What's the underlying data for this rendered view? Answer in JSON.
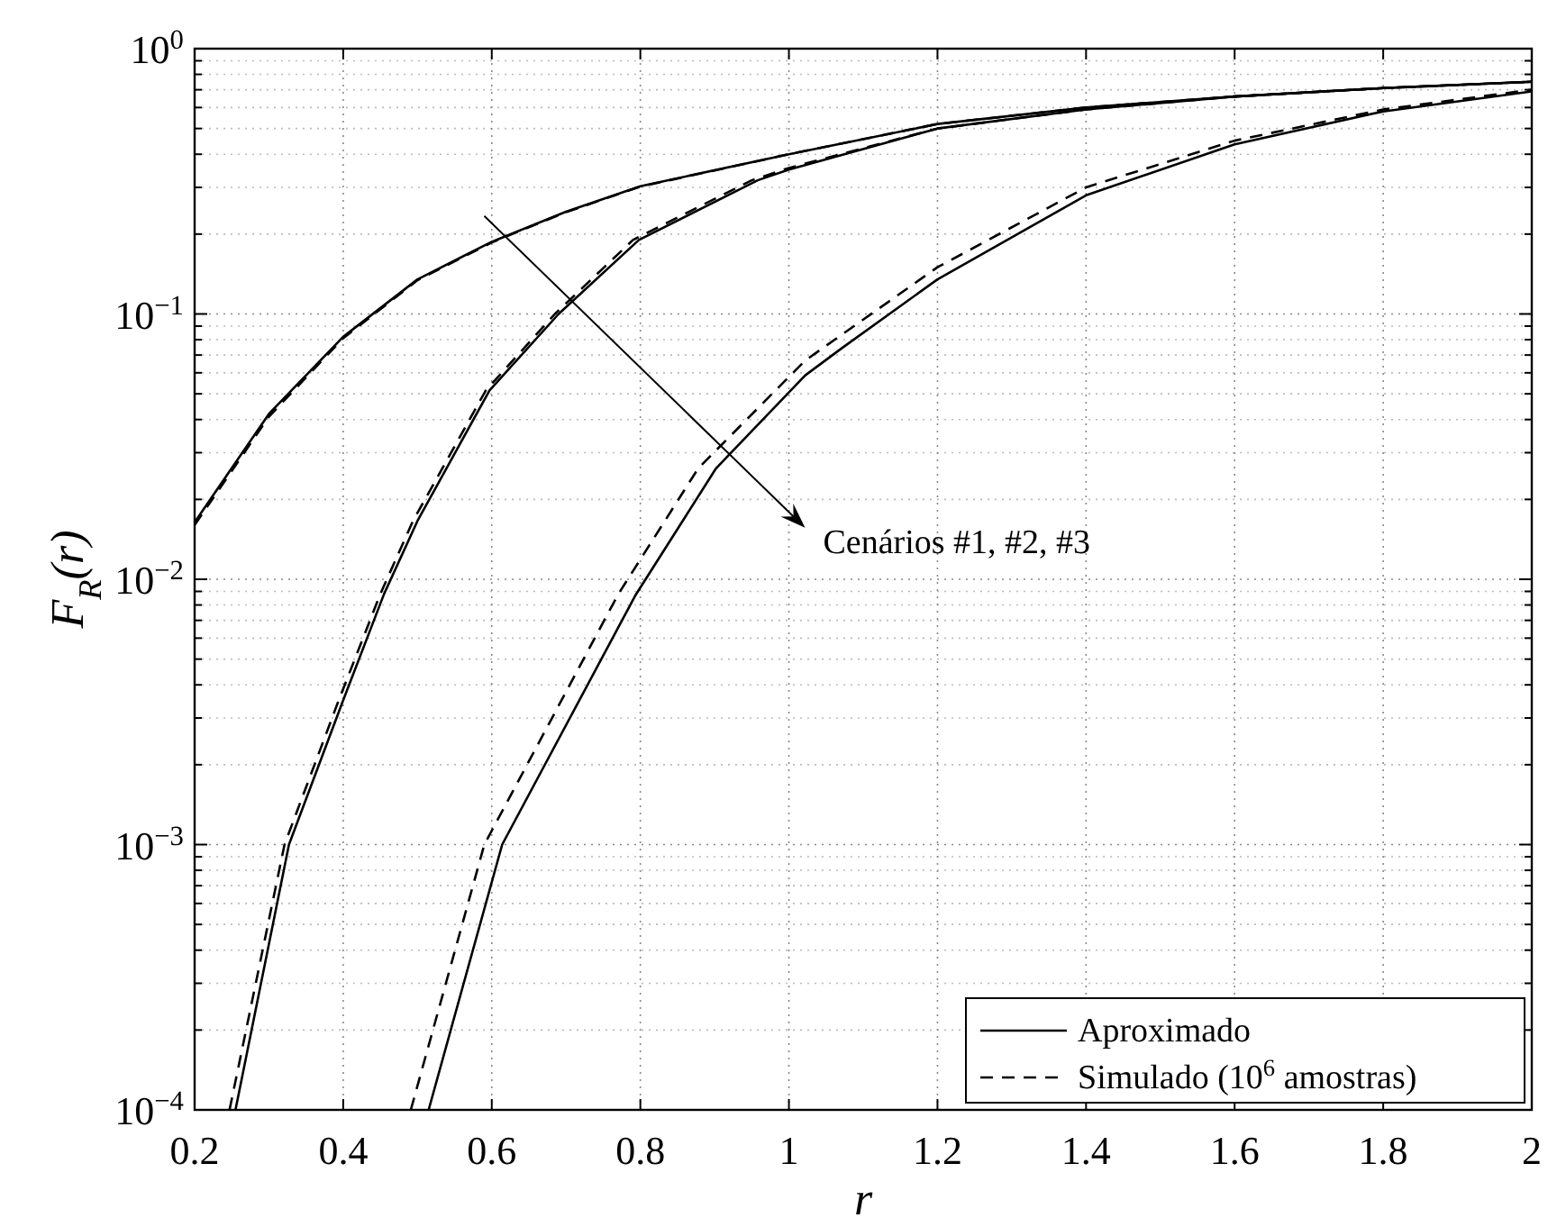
{
  "chart_data": {
    "type": "line",
    "xlabel": "r",
    "ylabel": "F$_{R}$(r)",
    "log": "y",
    "grid": true,
    "legend": "bottom right",
    "xlim": [
      0.2,
      2
    ],
    "xticks": [
      0.2,
      0.4,
      0.6,
      0.8,
      1,
      1.2,
      1.4,
      1.6,
      1.8,
      2
    ],
    "ylim": [
      0.0001,
      1
    ],
    "yticks": [
      {
        "value": 0.0001,
        "label": "10$^{−4}$"
      },
      {
        "value": 0.001,
        "label": "10$^{−3}$"
      },
      {
        "value": 0.01,
        "label": "10$^{−2}$"
      },
      {
        "value": 0.1,
        "label": "10$^{−1}$"
      },
      {
        "value": 1,
        "label": "10$^{0}$"
      }
    ],
    "annotations": [
      "Cenários #1, #2, #3"
    ],
    "series": [
      {
        "name": "Aproximado",
        "color": "#000000",
        "line_style": "solid",
        "x": [
          0.2,
          0.3,
          0.4,
          0.5,
          0.6,
          0.7,
          0.8,
          1.0,
          1.2,
          1.4,
          1.6,
          1.8,
          2.0
        ],
        "values": [
          0.0164,
          0.042,
          0.082,
          0.135,
          0.187,
          0.243,
          0.303,
          0.4,
          0.52,
          0.6,
          0.66,
          0.71,
          0.75
        ]
      },
      {
        "name": "Simulado (10$^{6}$ amostras)",
        "color": "#000000",
        "line_style": "dashed",
        "x": [
          0.2,
          0.3,
          0.4,
          0.5,
          0.6,
          0.7,
          0.8,
          1.0,
          1.2,
          1.4,
          1.6,
          1.8,
          2.0
        ],
        "values": [
          0.016,
          0.041,
          0.081,
          0.134,
          0.186,
          0.242,
          0.302,
          0.4,
          0.52,
          0.6,
          0.66,
          0.71,
          0.75
        ]
      },
      {
        "color": "#000000",
        "line_style": "solid",
        "x": [
          0.255,
          0.327,
          0.4,
          0.455,
          0.5,
          0.597,
          0.69,
          0.798,
          0.958,
          1.0,
          1.2,
          1.4,
          1.6,
          1.8,
          2.0
        ],
        "values": [
          0.0001,
          0.001,
          0.0035,
          0.0088,
          0.0166,
          0.0515,
          0.1,
          0.19,
          0.319,
          0.35,
          0.5,
          0.59,
          0.66,
          0.71,
          0.75
        ]
      },
      {
        "color": "#000000",
        "line_style": "dashed",
        "x": [
          0.247,
          0.321,
          0.394,
          0.45,
          0.494,
          0.592,
          0.685,
          0.79,
          0.95,
          1.0,
          1.2,
          1.4,
          1.6,
          1.8,
          2.0
        ],
        "values": [
          0.0001,
          0.001,
          0.0035,
          0.0088,
          0.0166,
          0.0515,
          0.1,
          0.19,
          0.319,
          0.355,
          0.5,
          0.59,
          0.66,
          0.71,
          0.75
        ]
      },
      {
        "color": "#000000",
        "line_style": "solid",
        "x": [
          0.515,
          0.614,
          0.794,
          0.902,
          1.022,
          1.071,
          1.2,
          1.4,
          1.6,
          1.8,
          2.0
        ],
        "values": [
          0.0001,
          0.001,
          0.00876,
          0.0262,
          0.0587,
          0.0742,
          0.135,
          0.28,
          0.436,
          0.58,
          0.69
        ]
      },
      {
        "color": "#000000",
        "line_style": "dashed",
        "x": [
          0.491,
          0.59,
          0.77,
          0.878,
          1.022,
          1.2,
          1.4,
          1.6,
          1.8,
          2.0
        ],
        "values": [
          0.0001,
          0.001,
          0.00876,
          0.0262,
          0.0668,
          0.15,
          0.3,
          0.45,
          0.59,
          0.7
        ]
      }
    ]
  }
}
